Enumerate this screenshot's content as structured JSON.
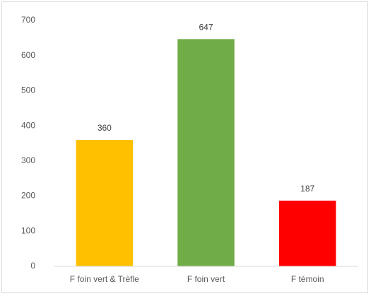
{
  "chart_data": {
    "type": "bar",
    "categories": [
      "F foin vert & Trèfle",
      "F foin vert",
      "F témoin"
    ],
    "values": [
      360,
      647,
      187
    ],
    "colors": [
      "#ffc000",
      "#70ad47",
      "#ff0000"
    ],
    "ylim": [
      0,
      700
    ],
    "yticks": [
      0,
      100,
      200,
      300,
      400,
      500,
      600,
      700
    ],
    "grid": false
  }
}
